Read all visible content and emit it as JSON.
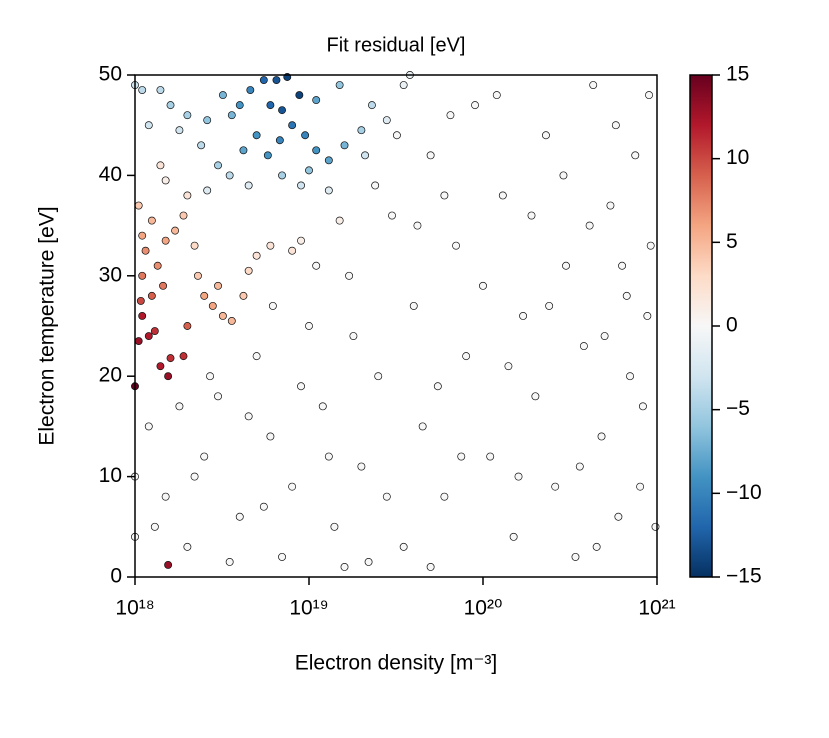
{
  "chart_data": {
    "type": "scatter",
    "title": "Fit residual [eV]",
    "x_label": "Electron density [m⁻³]",
    "y_label": "Electron temperature [eV]",
    "x_scale": "log",
    "xlim": [
      1e+18,
      1e+21
    ],
    "xticks": [
      {
        "value": 1e+18,
        "label": "10¹⁸"
      },
      {
        "value": 1e+19,
        "label": "10¹⁹"
      },
      {
        "value": 1e+20,
        "label": "10²⁰"
      },
      {
        "value": 1e+21,
        "label": "10²¹"
      }
    ],
    "ylim": [
      0,
      50
    ],
    "yticks": [
      0,
      10,
      20,
      30,
      40,
      50
    ],
    "colormap": [
      "#053061",
      "#2166ac",
      "#4393c3",
      "#92c5de",
      "#d1e5f0",
      "#f7f7f7",
      "#fddbc7",
      "#f4a582",
      "#d6604d",
      "#b2182b",
      "#67001f"
    ],
    "clim": [
      -15,
      15
    ],
    "cticks": [
      {
        "value": -15,
        "label": "−15"
      },
      {
        "value": -10,
        "label": "−10"
      },
      {
        "value": -5,
        "label": "−5"
      },
      0,
      5,
      10,
      15
    ],
    "x": [
      1.2e+18,
      1.5e+18,
      2e+18,
      2.5e+18,
      3e+18,
      4e+18,
      5e+18,
      6e+18,
      7e+18,
      8e+18,
      1e+19,
      1.2e+19,
      1.4e+19,
      1.7e+19,
      2e+19,
      2.5e+19,
      3e+19,
      3.5e+19,
      4e+19,
      4.5e+19,
      5e+19,
      6e+19,
      7e+19,
      8e+19,
      9e+19,
      1.1e+20,
      1.3e+20,
      1.5e+20,
      1.7e+20,
      2e+20,
      2.3e+20,
      2.6e+20,
      3e+20,
      3.4e+20,
      3.8e+20,
      4.3e+20,
      4.8e+20,
      5.4e+20,
      6e+20,
      6.7e+20,
      7.5e+20,
      8.3e+20,
      9.2e+20,
      9.8e+20,
      1.3e+18,
      1.8e+18,
      2.2e+18,
      3.5e+18,
      4.5e+18,
      5.5e+18,
      9e+18,
      1.3e+19,
      1.8e+19,
      2.2e+19,
      2.8e+19,
      4.2e+19,
      5.5e+19,
      6.5e+19,
      7.5e+19,
      1e+20,
      1.2e+20,
      1.4e+20,
      1.9e+20,
      2.4e+20,
      2.9e+20,
      3.6e+20,
      4.1e+20,
      5e+20,
      5.8e+20,
      7e+20,
      8e+20,
      9e+20,
      2.7e+18,
      6.2e+18,
      1.1e+19,
      2.4e+19,
      3.2e+19,
      6e+19,
      1.6e+20,
      4.5e+20,
      6.3e+20,
      8.8e+20,
      1.6e+19,
      5e+19,
      1e+18,
      1e+18,
      1e+18,
      1.55e+18,
      1.4e+18,
      1.6e+18,
      1.05e+18,
      1.2e+18,
      1.3e+18,
      1.1e+18,
      1.08e+18,
      1.25e+18,
      1.45e+18,
      1.1e+18,
      1.35e+18,
      1.15e+18,
      1.5e+18,
      1.1e+18,
      1.7e+18,
      1.25e+18,
      1.05e+18,
      1.9e+18,
      2.2e+18,
      2.5e+18,
      2.8e+18,
      3.2e+18,
      3.6e+18,
      2.3e+18,
      3e+18,
      4.2e+18,
      4.5e+18,
      2e+18,
      1.9e+18,
      1.55e+18,
      5e+18,
      6e+18,
      8e+18,
      9e+18,
      1.5e+19,
      2e+18,
      1.5e+18,
      1.4e+18,
      1e+18,
      1.1e+18,
      1.4e+18,
      1.6e+18,
      2e+18,
      2.6e+18,
      3.2e+18,
      3.6e+18,
      4e+18,
      4.6e+18,
      5.5e+18,
      6.5e+18,
      7.5e+18,
      8.8e+18,
      7e+18,
      6e+18,
      5e+18,
      4.2e+18,
      5.8e+18,
      6.8e+18,
      8e+18,
      9.5e+18,
      1.1e+19,
      1.3e+19,
      1.6e+19,
      2e+19,
      2.3e+19,
      1.5e+19,
      1.1e+19,
      3e+18,
      2.4e+18,
      1.8e+18,
      1.2e+18,
      3.5e+18,
      7e+18,
      1e+19,
      2.1e+19,
      2.8e+19,
      3.5e+19,
      3.8e+19,
      2.6e+18,
      4.5e+18,
      9e+18,
      1.3e+19
    ],
    "y": [
      15,
      8,
      3,
      12,
      18,
      6,
      22,
      14,
      2,
      9,
      25,
      17,
      5,
      30,
      11,
      20,
      36,
      3,
      27,
      15,
      42,
      8,
      33,
      22,
      47,
      12,
      38,
      4,
      26,
      18,
      44,
      9,
      31,
      2,
      23,
      49,
      14,
      37,
      6,
      28,
      42,
      17,
      33,
      5,
      5,
      17,
      10,
      1.5,
      16,
      7,
      19,
      12,
      24,
      1.5,
      8,
      35,
      19,
      46,
      12,
      29,
      48,
      21,
      36,
      27,
      40,
      11,
      35,
      24,
      45,
      20,
      9,
      48,
      20,
      27,
      31,
      39,
      44,
      38,
      10,
      3,
      31,
      26,
      1,
      1,
      10,
      4,
      19,
      20,
      21,
      21.8,
      23.5,
      24,
      24.5,
      26,
      27.5,
      28,
      29,
      30,
      31,
      32.5,
      33.5,
      34,
      34.5,
      35.5,
      37,
      36,
      33,
      28,
      27,
      26,
      25.5,
      30,
      29,
      28,
      30.5,
      25,
      22,
      1.2,
      32,
      33,
      32.5,
      33.5,
      35.5,
      38,
      39.5,
      41,
      49,
      48.5,
      48.5,
      47,
      46,
      45.5,
      48,
      46,
      47,
      48.5,
      49.5,
      49.5,
      49.8,
      48,
      46.5,
      47,
      44,
      42.5,
      42,
      43.5,
      45,
      44,
      42.5,
      41.5,
      43,
      44.5,
      47,
      49,
      47.5,
      41,
      43,
      44.5,
      45,
      40,
      40,
      40.5,
      42,
      45.5,
      49,
      50,
      38.5,
      39,
      39,
      38.5
    ],
    "c": [
      0,
      0,
      0,
      0,
      0,
      0,
      0,
      0,
      0,
      0,
      0,
      0,
      0,
      0,
      0,
      0,
      0,
      0,
      0,
      0,
      0,
      0,
      0,
      0,
      0,
      0,
      0,
      0,
      0,
      0,
      0,
      0,
      0,
      0,
      0,
      0,
      0,
      0,
      0,
      0,
      0,
      0,
      0,
      0,
      0,
      0,
      0,
      0,
      0,
      0,
      0,
      0,
      0,
      0,
      0,
      0,
      0,
      0,
      0,
      0,
      0,
      0,
      0,
      0,
      0,
      0,
      0,
      0,
      0,
      0,
      0,
      0,
      0,
      0,
      0,
      0,
      0,
      0,
      0,
      0,
      0,
      0,
      0,
      0,
      0,
      0,
      15,
      13,
      12,
      11,
      13,
      12,
      11,
      12,
      10,
      9,
      8,
      8,
      7,
      7,
      6,
      6,
      5,
      5,
      4,
      4,
      3,
      6,
      6,
      5,
      5,
      4,
      5,
      4,
      3,
      9,
      11,
      13,
      2,
      2,
      2,
      1,
      1,
      2,
      1,
      2,
      -3,
      -4,
      -4,
      -5,
      -5,
      -6,
      -7,
      -7,
      -9,
      -10,
      -12,
      -13,
      -14,
      -14,
      -13,
      -12,
      -9,
      -8,
      -9,
      -10,
      -11,
      -10,
      -9,
      -8,
      -7,
      -5,
      -4,
      -6,
      -8,
      -5,
      -4,
      -3,
      -3,
      -4,
      -5,
      -6,
      -3,
      -2,
      -1,
      -1,
      -2,
      -2,
      -3,
      -2
    ]
  }
}
